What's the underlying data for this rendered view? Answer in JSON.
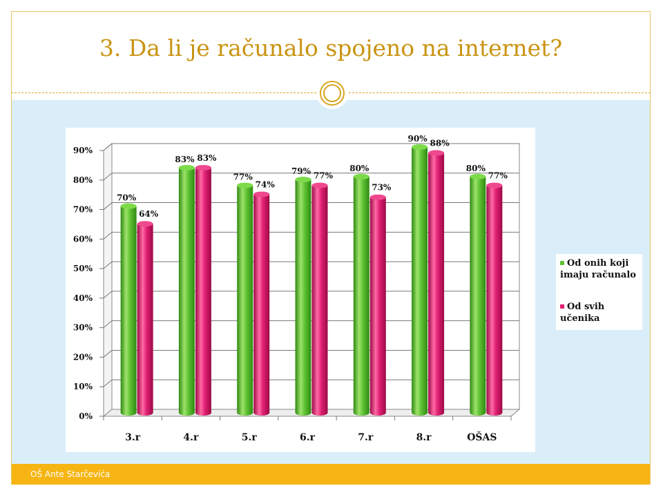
{
  "slide": {
    "title": "3. Da li je računalo spojeno na internet?",
    "footer": "OŠ Ante Starčevića"
  },
  "colors": {
    "accent": "#d9a520",
    "title": "#c99412",
    "footer": "#f6b512",
    "background": "#daeefa",
    "series1": "#5fc234",
    "series2": "#e01f73"
  },
  "chart_data": {
    "type": "bar",
    "categories": [
      "3.r",
      "4.r",
      "5.r",
      "6.r",
      "7.r",
      "8.r",
      "OŠAS"
    ],
    "series": [
      {
        "name": "Od onih koji imaju računalo",
        "values": [
          70,
          83,
          77,
          79,
          80,
          90,
          80
        ],
        "labels": [
          "70%",
          "83%",
          "77%",
          "79%",
          "80%",
          "90%",
          "80%"
        ]
      },
      {
        "name": "Od svih učenika",
        "values": [
          64,
          83,
          74,
          77,
          73,
          88,
          77
        ],
        "labels": [
          "64%",
          "83%",
          "74%",
          "77%",
          "73%",
          "88%",
          "77%"
        ]
      }
    ],
    "ylim": [
      0,
      90
    ],
    "yticks": [
      "0%",
      "10%",
      "20%",
      "30%",
      "40%",
      "50%",
      "60%",
      "70%",
      "80%",
      "90%"
    ],
    "grid": true,
    "legend": "right",
    "style": "3d-cylinder"
  }
}
